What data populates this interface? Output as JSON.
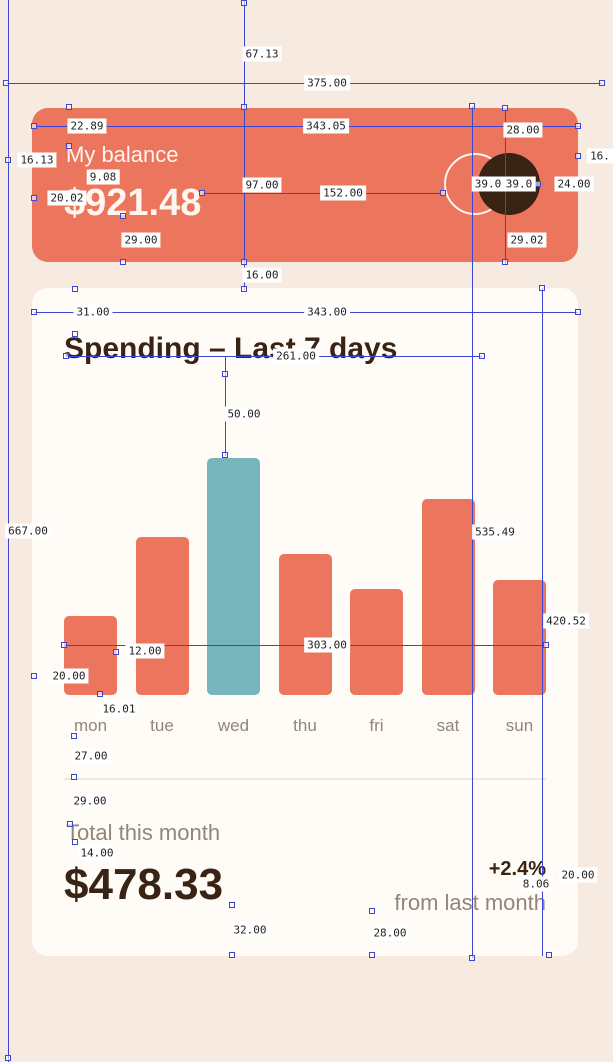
{
  "balance": {
    "label": "My balance",
    "amount": "$921.48"
  },
  "spending": {
    "title": "Spending – Last 7 days",
    "total_label": "Total this month",
    "total_amount": "$478.33",
    "change_value": "+2.4%",
    "change_caption": "from last month"
  },
  "chart_data": {
    "type": "bar",
    "categories": [
      "mon",
      "tue",
      "wed",
      "thu",
      "fri",
      "sat",
      "sun"
    ],
    "values": [
      17.45,
      34.91,
      52.36,
      31.07,
      23.39,
      43.28,
      25.48
    ],
    "active_index": 2,
    "colors": {
      "bar": "#ec755d",
      "active": "#76b5bc"
    }
  },
  "measurements": [
    "67.13",
    "375.00",
    "22.89",
    "343.05",
    "28.00",
    "16.13",
    "16.",
    "9.08",
    "20.02",
    "97.00",
    "152.00",
    "39.0",
    "39.0",
    "24.00",
    "29.00",
    "29.02",
    "16.00",
    "31.00",
    "343.00",
    "261.00",
    "50.00",
    "667.00",
    "535.49",
    "420.52",
    "12.00",
    "303.00",
    "20.00",
    "16.01",
    "27.00",
    "29.00",
    "14.00",
    "8.06",
    "20.00",
    "32.00",
    "28.00"
  ]
}
